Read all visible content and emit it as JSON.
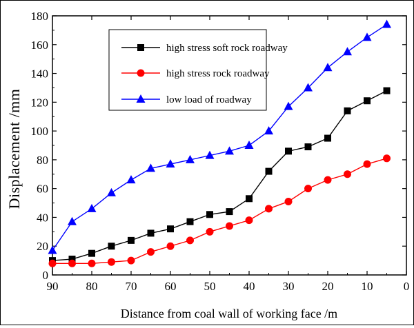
{
  "chart_data": {
    "type": "line",
    "title": "",
    "xlabel": "Distance from coal wall of working face /m",
    "ylabel": "Displacement /mm",
    "xlim": [
      90,
      0
    ],
    "ylim": [
      0,
      180
    ],
    "x_reversed": true,
    "x_ticks": [
      90,
      80,
      70,
      60,
      50,
      40,
      30,
      20,
      10,
      0
    ],
    "y_ticks": [
      0,
      20,
      40,
      60,
      80,
      100,
      120,
      140,
      160,
      180
    ],
    "grid": false,
    "legend_position": "top-left",
    "x": [
      90,
      85,
      80,
      75,
      70,
      65,
      60,
      55,
      50,
      45,
      40,
      35,
      30,
      25,
      20,
      15,
      10,
      5
    ],
    "series": [
      {
        "name": "high stress soft rock roadway",
        "color": "#000000",
        "marker": "square",
        "values": [
          10,
          11,
          15,
          20,
          24,
          29,
          32,
          37,
          42,
          44,
          53,
          72,
          86,
          89,
          95,
          114,
          121,
          128
        ]
      },
      {
        "name": "high stress rock roadway",
        "color": "#ff0000",
        "marker": "circle",
        "values": [
          8,
          8,
          8,
          9,
          10,
          16,
          20,
          24,
          30,
          34,
          38,
          46,
          51,
          60,
          66,
          70,
          77,
          81
        ]
      },
      {
        "name": "low load of roadway",
        "color": "#0000ff",
        "marker": "triangle",
        "values": [
          17,
          37,
          46,
          57,
          66,
          74,
          77,
          80,
          83,
          86,
          90,
          100,
          117,
          130,
          144,
          155,
          165,
          174
        ]
      }
    ]
  }
}
